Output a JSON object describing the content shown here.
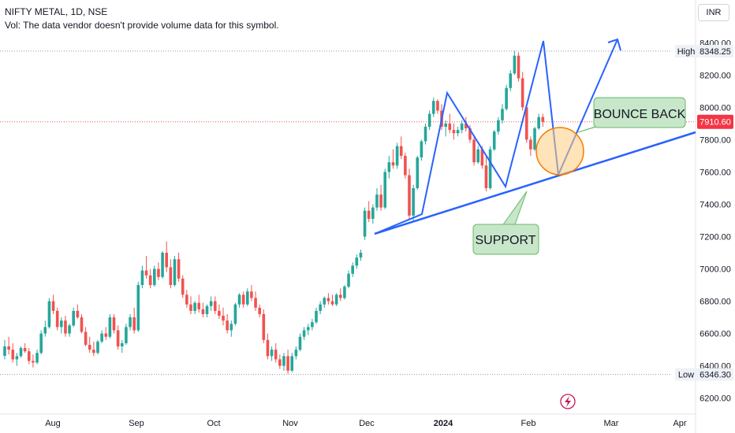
{
  "header": {
    "title": "NIFTY METAL, 1D, NSE",
    "volume_note": "Vol: The data vendor doesn't provide volume data for this symbol."
  },
  "currency_label": "INR",
  "colors": {
    "up": "#26a69a",
    "down": "#ef5350",
    "trendline": "#2962ff",
    "last_price_bg": "#f23645",
    "callout_fill": "#c8e6c9",
    "callout_border": "#66bb6a",
    "circle_fill": "#ffcc80",
    "circle_border": "#f57c00",
    "event_icon": "#c2185b"
  },
  "icons": {
    "event": "lightning-bolt-icon"
  },
  "chart_data": {
    "type": "candlestick",
    "y_range": [
      6140,
      8460
    ],
    "y_ticks": [
      "6200.00",
      "6400.00",
      "6600.00",
      "6800.00",
      "7000.00",
      "7200.00",
      "7400.00",
      "7600.00",
      "7800.00",
      "8000.00",
      "8200.00",
      "8400.00"
    ],
    "x_labels": [
      "Aug",
      "Sep",
      "Oct",
      "Nov",
      "Dec",
      "2024",
      "Feb",
      "Mar",
      "Apr"
    ],
    "high_label": "High",
    "high_value": "8348.25",
    "low_label": "Low",
    "low_value": "6346.30",
    "last_price": "7910.60",
    "annotations": {
      "bounce": "BOUNCE BACK",
      "support": "SUPPORT"
    },
    "candles": [
      [
        6462,
        6560,
        6440,
        6520
      ],
      [
        6520,
        6580,
        6470,
        6500
      ],
      [
        6500,
        6540,
        6420,
        6440
      ],
      [
        6440,
        6480,
        6400,
        6460
      ],
      [
        6460,
        6520,
        6450,
        6510
      ],
      [
        6510,
        6540,
        6480,
        6490
      ],
      [
        6490,
        6510,
        6410,
        6430
      ],
      [
        6430,
        6470,
        6390,
        6420
      ],
      [
        6420,
        6500,
        6410,
        6480
      ],
      [
        6480,
        6620,
        6470,
        6600
      ],
      [
        6600,
        6680,
        6580,
        6640
      ],
      [
        6640,
        6820,
        6630,
        6800
      ],
      [
        6800,
        6840,
        6720,
        6740
      ],
      [
        6740,
        6760,
        6620,
        6640
      ],
      [
        6640,
        6700,
        6600,
        6680
      ],
      [
        6680,
        6710,
        6580,
        6600
      ],
      [
        6600,
        6660,
        6580,
        6650
      ],
      [
        6650,
        6760,
        6640,
        6740
      ],
      [
        6740,
        6780,
        6690,
        6700
      ],
      [
        6700,
        6720,
        6600,
        6610
      ],
      [
        6610,
        6640,
        6520,
        6530
      ],
      [
        6530,
        6580,
        6480,
        6500
      ],
      [
        6500,
        6550,
        6460,
        6480
      ],
      [
        6480,
        6560,
        6470,
        6550
      ],
      [
        6550,
        6620,
        6540,
        6600
      ],
      [
        6600,
        6640,
        6560,
        6580
      ],
      [
        6580,
        6720,
        6570,
        6700
      ],
      [
        6700,
        6720,
        6600,
        6620
      ],
      [
        6620,
        6650,
        6500,
        6520
      ],
      [
        6520,
        6560,
        6480,
        6540
      ],
      [
        6540,
        6660,
        6530,
        6640
      ],
      [
        6640,
        6720,
        6620,
        6700
      ],
      [
        6700,
        6760,
        6600,
        6620
      ],
      [
        6620,
        6920,
        6610,
        6900
      ],
      [
        6900,
        7020,
        6880,
        6990
      ],
      [
        6990,
        7080,
        6940,
        6960
      ],
      [
        6960,
        7000,
        6880,
        6900
      ],
      [
        6900,
        7020,
        6890,
        7000
      ],
      [
        7000,
        7040,
        6930,
        6950
      ],
      [
        6950,
        7110,
        6940,
        7100
      ],
      [
        7100,
        7170,
        6980,
        7010
      ],
      [
        7010,
        7060,
        6880,
        6900
      ],
      [
        6900,
        7080,
        6890,
        7060
      ],
      [
        7060,
        7100,
        6920,
        6940
      ],
      [
        6940,
        6960,
        6820,
        6840
      ],
      [
        6840,
        6870,
        6760,
        6780
      ],
      [
        6780,
        6830,
        6720,
        6740
      ],
      [
        6740,
        6800,
        6720,
        6790
      ],
      [
        6790,
        6840,
        6730,
        6750
      ],
      [
        6750,
        6790,
        6700,
        6720
      ],
      [
        6720,
        6780,
        6700,
        6770
      ],
      [
        6770,
        6830,
        6740,
        6800
      ],
      [
        6800,
        6830,
        6720,
        6740
      ],
      [
        6740,
        6780,
        6690,
        6710
      ],
      [
        6710,
        6760,
        6650,
        6680
      ],
      [
        6680,
        6720,
        6600,
        6620
      ],
      [
        6620,
        6680,
        6580,
        6660
      ],
      [
        6660,
        6790,
        6650,
        6780
      ],
      [
        6780,
        6850,
        6760,
        6840
      ],
      [
        6840,
        6860,
        6760,
        6780
      ],
      [
        6780,
        6880,
        6770,
        6860
      ],
      [
        6860,
        6900,
        6800,
        6820
      ],
      [
        6820,
        6860,
        6740,
        6760
      ],
      [
        6760,
        6780,
        6700,
        6720
      ],
      [
        6720,
        6750,
        6540,
        6560
      ],
      [
        6560,
        6600,
        6440,
        6460
      ],
      [
        6460,
        6520,
        6430,
        6500
      ],
      [
        6500,
        6540,
        6420,
        6440
      ],
      [
        6440,
        6470,
        6380,
        6400
      ],
      [
        6400,
        6480,
        6370,
        6460
      ],
      [
        6460,
        6500,
        6350,
        6370
      ],
      [
        6370,
        6480,
        6360,
        6460
      ],
      [
        6460,
        6520,
        6440,
        6500
      ],
      [
        6500,
        6600,
        6490,
        6580
      ],
      [
        6580,
        6640,
        6560,
        6620
      ],
      [
        6620,
        6660,
        6590,
        6640
      ],
      [
        6640,
        6690,
        6620,
        6670
      ],
      [
        6670,
        6760,
        6660,
        6740
      ],
      [
        6740,
        6800,
        6720,
        6780
      ],
      [
        6780,
        6830,
        6760,
        6820
      ],
      [
        6820,
        6850,
        6780,
        6800
      ],
      [
        6800,
        6840,
        6770,
        6780
      ],
      [
        6780,
        6850,
        6770,
        6840
      ],
      [
        6840,
        6880,
        6800,
        6820
      ],
      [
        6820,
        6900,
        6810,
        6890
      ],
      [
        6890,
        6990,
        6880,
        6970
      ],
      [
        6970,
        7040,
        6950,
        7020
      ],
      [
        7020,
        7090,
        7000,
        7070
      ],
      [
        7070,
        7120,
        7050,
        7100
      ],
      [
        7200,
        7380,
        7180,
        7360
      ],
      [
        7360,
        7420,
        7290,
        7310
      ],
      [
        7310,
        7400,
        7280,
        7380
      ],
      [
        7380,
        7500,
        7360,
        7460
      ],
      [
        7460,
        7520,
        7360,
        7380
      ],
      [
        7380,
        7620,
        7370,
        7600
      ],
      [
        7600,
        7700,
        7560,
        7660
      ],
      [
        7660,
        7740,
        7620,
        7640
      ],
      [
        7640,
        7780,
        7620,
        7760
      ],
      [
        7760,
        7820,
        7680,
        7700
      ],
      [
        7700,
        7720,
        7560,
        7580
      ],
      [
        7580,
        7620,
        7300,
        7330
      ],
      [
        7330,
        7520,
        7300,
        7500
      ],
      [
        7500,
        7700,
        7490,
        7690
      ],
      [
        7690,
        7800,
        7670,
        7790
      ],
      [
        7790,
        7900,
        7770,
        7880
      ],
      [
        7880,
        7980,
        7860,
        7960
      ],
      [
        7960,
        8060,
        7940,
        8040
      ],
      [
        8040,
        8050,
        7960,
        7980
      ],
      [
        7980,
        8020,
        7860,
        7880
      ],
      [
        7880,
        7920,
        7820,
        7900
      ],
      [
        7900,
        7960,
        7840,
        7860
      ],
      [
        7860,
        7900,
        7800,
        7840
      ],
      [
        7840,
        7880,
        7820,
        7860
      ],
      [
        7860,
        7920,
        7840,
        7900
      ],
      [
        7900,
        7940,
        7850,
        7870
      ],
      [
        7870,
        7890,
        7780,
        7800
      ],
      [
        7800,
        7820,
        7640,
        7660
      ],
      [
        7660,
        7760,
        7650,
        7740
      ],
      [
        7740,
        7760,
        7620,
        7640
      ],
      [
        7640,
        7700,
        7480,
        7500
      ],
      [
        7500,
        7760,
        7490,
        7740
      ],
      [
        7740,
        7860,
        7730,
        7850
      ],
      [
        7850,
        7940,
        7830,
        7920
      ],
      [
        7920,
        8020,
        7900,
        7990
      ],
      [
        7990,
        8140,
        7980,
        8120
      ],
      [
        8120,
        8230,
        8100,
        8210
      ],
      [
        8210,
        8350,
        8200,
        8320
      ],
      [
        8320,
        8340,
        8160,
        8180
      ],
      [
        8180,
        8220,
        7980,
        8000
      ],
      [
        8000,
        8020,
        7780,
        7800
      ],
      [
        7800,
        7820,
        7700,
        7740
      ],
      [
        7740,
        7880,
        7730,
        7870
      ],
      [
        7870,
        7960,
        7860,
        7940
      ],
      [
        7940,
        7960,
        7880,
        7910
      ]
    ]
  }
}
